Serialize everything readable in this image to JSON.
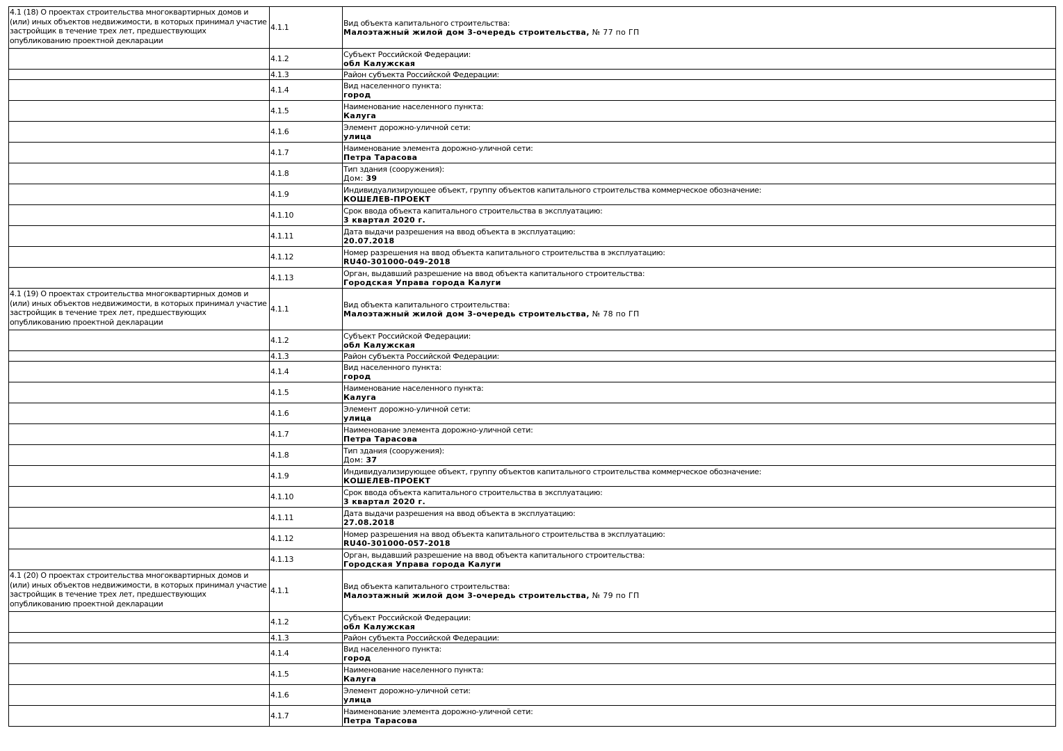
{
  "blocks": [
    {
      "heading": "4.1 (18) О проектах строительства многоквартирных домов и (или) иных объектов недвижимости, в которых принимал участие застройщик в течение трех лет, предшествующих опубликованию проектной декларации",
      "rows": [
        {
          "code": "4.1.1",
          "label": "Вид объекта капитального строительства:",
          "value": "Малоэтажный жилой дом 3-очередь строительства,",
          "suffix": " № 77 по ГП"
        },
        {
          "code": "4.1.2",
          "label": "Субъект Российской Федерации:",
          "value": "обл Калужская"
        },
        {
          "code": "4.1.3",
          "label": "Район субъекта Российской Федерации:"
        },
        {
          "code": "4.1.4",
          "label": "Вид населенного пункта:",
          "value": "город"
        },
        {
          "code": "4.1.5",
          "label": "Наименование населенного пункта:",
          "value": "Калуга"
        },
        {
          "code": "4.1.6",
          "label": "Элемент дорожно-уличной сети:",
          "value": "улица"
        },
        {
          "code": "4.1.7",
          "label": "Наименование элемента дорожно-уличной сети:",
          "value": "Петра Тарасова"
        },
        {
          "code": "4.1.8",
          "label": "Тип здания (сооружения):",
          "prefix": "Дом: ",
          "value": "39"
        },
        {
          "code": "4.1.9",
          "label": "Индивидуализирующее объект, группу объектов капитального строительства коммерческое обозначение:",
          "value": "КОШЕЛЕВ-ПРОЕКТ"
        },
        {
          "code": "4.1.10",
          "label": "Срок ввода объекта капитального строительства в эксплуатацию:",
          "value": "3 квартал 2020 г."
        },
        {
          "code": "4.1.11",
          "label": "Дата выдачи разрешения на ввод объекта в эксплуатацию:",
          "value": "20.07.2018"
        },
        {
          "code": "4.1.12",
          "label": "Номер разрешения на ввод объекта капитального строительства в эксплуатацию:",
          "value": "RU40-301000-049-2018"
        },
        {
          "code": "4.1.13",
          "label": "Орган, выдавший разрешение на ввод объекта капитального строительства:",
          "value": "Городская Управа города Калуги"
        }
      ]
    },
    {
      "heading": "4.1 (19) О проектах строительства многоквартирных домов и (или) иных объектов недвижимости, в которых принимал участие застройщик в течение трех лет, предшествующих опубликованию проектной декларации",
      "rows": [
        {
          "code": "4.1.1",
          "label": "Вид объекта капитального строительства:",
          "value": "Малоэтажный жилой дом 3-очередь строительства,",
          "suffix": " № 78 по ГП"
        },
        {
          "code": "4.1.2",
          "label": "Субъект Российской Федерации:",
          "value": "обл Калужская"
        },
        {
          "code": "4.1.3",
          "label": "Район субъекта Российской Федерации:"
        },
        {
          "code": "4.1.4",
          "label": "Вид населенного пункта:",
          "value": "город"
        },
        {
          "code": "4.1.5",
          "label": "Наименование населенного пункта:",
          "value": "Калуга"
        },
        {
          "code": "4.1.6",
          "label": "Элемент дорожно-уличной сети:",
          "value": "улица"
        },
        {
          "code": "4.1.7",
          "label": "Наименование элемента дорожно-уличной сети:",
          "value": "Петра Тарасова"
        },
        {
          "code": "4.1.8",
          "label": "Тип здания (сооружения):",
          "prefix": "Дом: ",
          "value": "37"
        },
        {
          "code": "4.1.9",
          "label": "Индивидуализирующее объект, группу объектов капитального строительства коммерческое обозначение:",
          "value": "КОШЕЛЕВ-ПРОЕКТ"
        },
        {
          "code": "4.1.10",
          "label": "Срок ввода объекта капитального строительства в эксплуатацию:",
          "value": "3 квартал 2020 г."
        },
        {
          "code": "4.1.11",
          "label": "Дата выдачи разрешения на ввод объекта в эксплуатацию:",
          "value": "27.08.2018"
        },
        {
          "code": "4.1.12",
          "label": "Номер разрешения на ввод объекта капитального строительства в эксплуатацию:",
          "value": "RU40-301000-057-2018"
        },
        {
          "code": "4.1.13",
          "label": "Орган, выдавший разрешение на ввод объекта капитального строительства:",
          "value": "Городская Управа города Калуги"
        }
      ]
    },
    {
      "heading": "4.1 (20) О проектах строительства многоквартирных домов и (или) иных объектов недвижимости, в которых принимал участие застройщик в течение трех лет, предшествующих опубликованию проектной декларации",
      "rows": [
        {
          "code": "4.1.1",
          "label": "Вид объекта капитального строительства:",
          "value": "Малоэтажный жилой дом 3-очередь строительства,",
          "suffix": " № 79 по ГП"
        },
        {
          "code": "4.1.2",
          "label": "Субъект Российской Федерации:",
          "value": "обл Калужская"
        },
        {
          "code": "4.1.3",
          "label": "Район субъекта Российской Федерации:"
        },
        {
          "code": "4.1.4",
          "label": "Вид населенного пункта:",
          "value": "город"
        },
        {
          "code": "4.1.5",
          "label": "Наименование населенного пункта:",
          "value": "Калуга"
        },
        {
          "code": "4.1.6",
          "label": "Элемент дорожно-уличной сети:",
          "value": "улица"
        },
        {
          "code": "4.1.7",
          "label": "Наименование элемента дорожно-уличной сети:",
          "value": "Петра Тарасова"
        }
      ]
    }
  ]
}
